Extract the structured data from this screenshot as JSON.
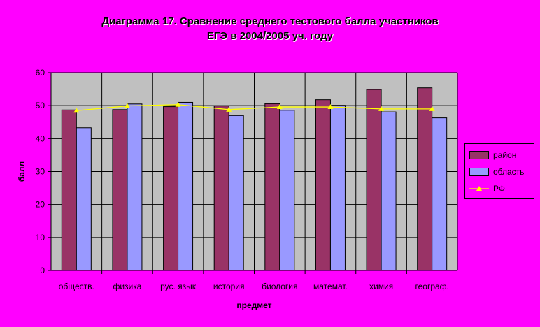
{
  "chart_data": {
    "type": "bar",
    "title": "Диаграмма 17. Сравнение среднего тестового балла участников ЕГЭ в 2004/2005 уч. году",
    "xlabel": "предмет",
    "ylabel": "балл",
    "ylim": [
      0,
      60
    ],
    "yticks": [
      "0",
      "10",
      "20",
      "30",
      "40",
      "50",
      "60"
    ],
    "categories": [
      "обществ.",
      "физика",
      "рус. язык",
      "история",
      "биология",
      "математ.",
      "химия",
      "географ."
    ],
    "grid": "horizontal",
    "legend_position": "right",
    "series": [
      {
        "name": "район",
        "type": "bar",
        "color": "#993366",
        "values": [
          48.7,
          48.8,
          49.7,
          49.9,
          50.6,
          51.8,
          54.9,
          55.4
        ]
      },
      {
        "name": "область",
        "type": "bar",
        "color": "#9999ff",
        "values": [
          43.3,
          50.5,
          51.0,
          47.0,
          48.6,
          50.1,
          48.1,
          46.3
        ]
      },
      {
        "name": "РФ",
        "type": "line",
        "color": "#ffff00",
        "values": [
          48.5,
          49.9,
          50.3,
          48.8,
          49.6,
          49.6,
          49.0,
          49.0
        ]
      }
    ]
  }
}
